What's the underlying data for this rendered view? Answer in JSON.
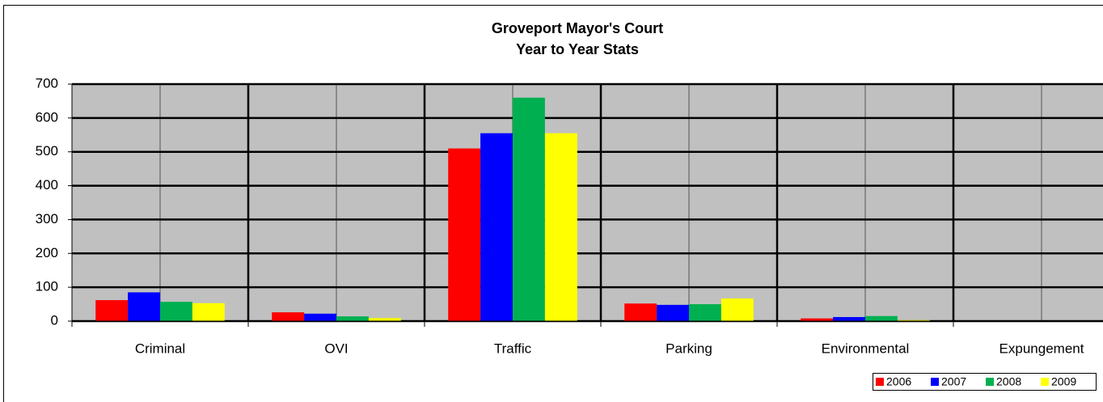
{
  "chart_data": {
    "type": "bar",
    "title": [
      "Groveport Mayor's Court",
      "Year to Year Stats"
    ],
    "categories": [
      "Criminal",
      "OVI",
      "Traffic",
      "Parking",
      "Environmental",
      "Expungement"
    ],
    "series": [
      {
        "name": "2006",
        "color": "#ff0000",
        "values": [
          62,
          26,
          510,
          52,
          8,
          0
        ]
      },
      {
        "name": "2007",
        "color": "#0000ff",
        "values": [
          85,
          22,
          555,
          48,
          12,
          0
        ]
      },
      {
        "name": "2008",
        "color": "#00b050",
        "values": [
          57,
          14,
          660,
          50,
          15,
          0
        ]
      },
      {
        "name": "2009",
        "color": "#ffff00",
        "values": [
          53,
          9,
          555,
          67,
          3,
          0
        ]
      }
    ],
    "ylim": [
      0,
      700
    ],
    "yticks": [
      0,
      100,
      200,
      300,
      400,
      500,
      600,
      700
    ],
    "grid": true,
    "legend": "bottom-right"
  }
}
